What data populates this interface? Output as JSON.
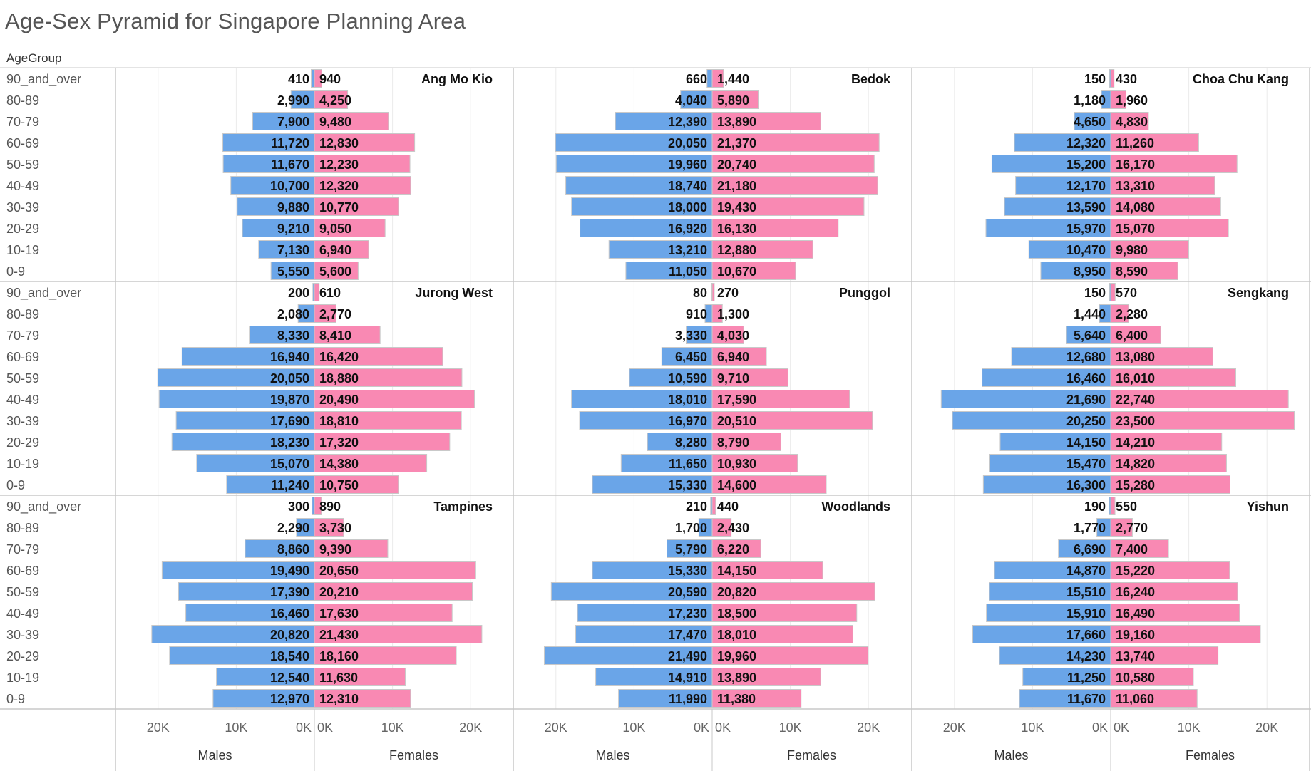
{
  "title": "Age-Sex Pyramid for Singapore Planning Area",
  "row_header": "AgeGroup",
  "age_groups": [
    "90_and_over",
    "80-89",
    "70-79",
    "60-69",
    "50-59",
    "40-49",
    "30-39",
    "20-29",
    "10-19",
    "0-9"
  ],
  "axis": {
    "males_label": "Males",
    "females_label": "Females",
    "males_ticks": [
      "20K",
      "10K",
      "0K"
    ],
    "females_ticks": [
      "0K",
      "10K",
      "20K"
    ]
  },
  "colors": {
    "males": "#6aa5e8",
    "females": "#f989b3"
  },
  "chart_data": {
    "type": "bar",
    "orientation": "horizontal-pyramid",
    "xlim": [
      0,
      25000
    ],
    "grid": true,
    "panels": [
      {
        "area": "Ang Mo Kio",
        "males": [
          410,
          2990,
          7900,
          11720,
          11670,
          10700,
          9880,
          9210,
          7130,
          5550
        ],
        "females": [
          940,
          4250,
          9480,
          12830,
          12230,
          12320,
          10770,
          9050,
          6940,
          5600
        ]
      },
      {
        "area": "Bedok",
        "males": [
          660,
          4040,
          12390,
          20050,
          19960,
          18740,
          18000,
          16920,
          13210,
          11050
        ],
        "females": [
          1440,
          5890,
          13890,
          21370,
          20740,
          21180,
          19430,
          16130,
          12880,
          10670
        ]
      },
      {
        "area": "Choa Chu Kang",
        "males": [
          150,
          1180,
          4650,
          12320,
          15200,
          12170,
          13590,
          15970,
          10470,
          8950
        ],
        "females": [
          430,
          1960,
          4830,
          11260,
          16170,
          13310,
          14080,
          15070,
          9980,
          8590
        ]
      },
      {
        "area": "Jurong West",
        "males": [
          200,
          2080,
          8330,
          16940,
          20050,
          19870,
          17690,
          18230,
          15070,
          11240
        ],
        "females": [
          610,
          2770,
          8410,
          16420,
          18880,
          20490,
          18810,
          17320,
          14380,
          10750
        ]
      },
      {
        "area": "Punggol",
        "males": [
          80,
          910,
          3330,
          6450,
          10590,
          18010,
          16970,
          8280,
          11650,
          15330
        ],
        "females": [
          270,
          1300,
          4030,
          6940,
          9710,
          17590,
          20510,
          8790,
          10930,
          14600
        ]
      },
      {
        "area": "Sengkang",
        "males": [
          150,
          1440,
          5640,
          12680,
          16460,
          21690,
          20250,
          14150,
          15470,
          16300
        ],
        "females": [
          570,
          2280,
          6400,
          13080,
          16010,
          22740,
          23500,
          14210,
          14820,
          15280
        ]
      },
      {
        "area": "Tampines",
        "males": [
          300,
          2290,
          8860,
          19490,
          17390,
          16460,
          20820,
          18540,
          12540,
          12970
        ],
        "females": [
          890,
          3730,
          9390,
          20650,
          20210,
          17630,
          21430,
          18160,
          11630,
          12310
        ]
      },
      {
        "area": "Woodlands",
        "males": [
          210,
          1700,
          5790,
          15330,
          20590,
          17230,
          17470,
          21490,
          14910,
          11990
        ],
        "females": [
          440,
          2430,
          6220,
          14150,
          20820,
          18500,
          18010,
          19960,
          13890,
          11380
        ]
      },
      {
        "area": "Yishun",
        "males": [
          190,
          1770,
          6690,
          14870,
          15510,
          15910,
          17660,
          14230,
          11250,
          11670
        ],
        "females": [
          550,
          2770,
          7400,
          15220,
          16240,
          16490,
          19160,
          13740,
          10580,
          11060
        ]
      }
    ]
  }
}
